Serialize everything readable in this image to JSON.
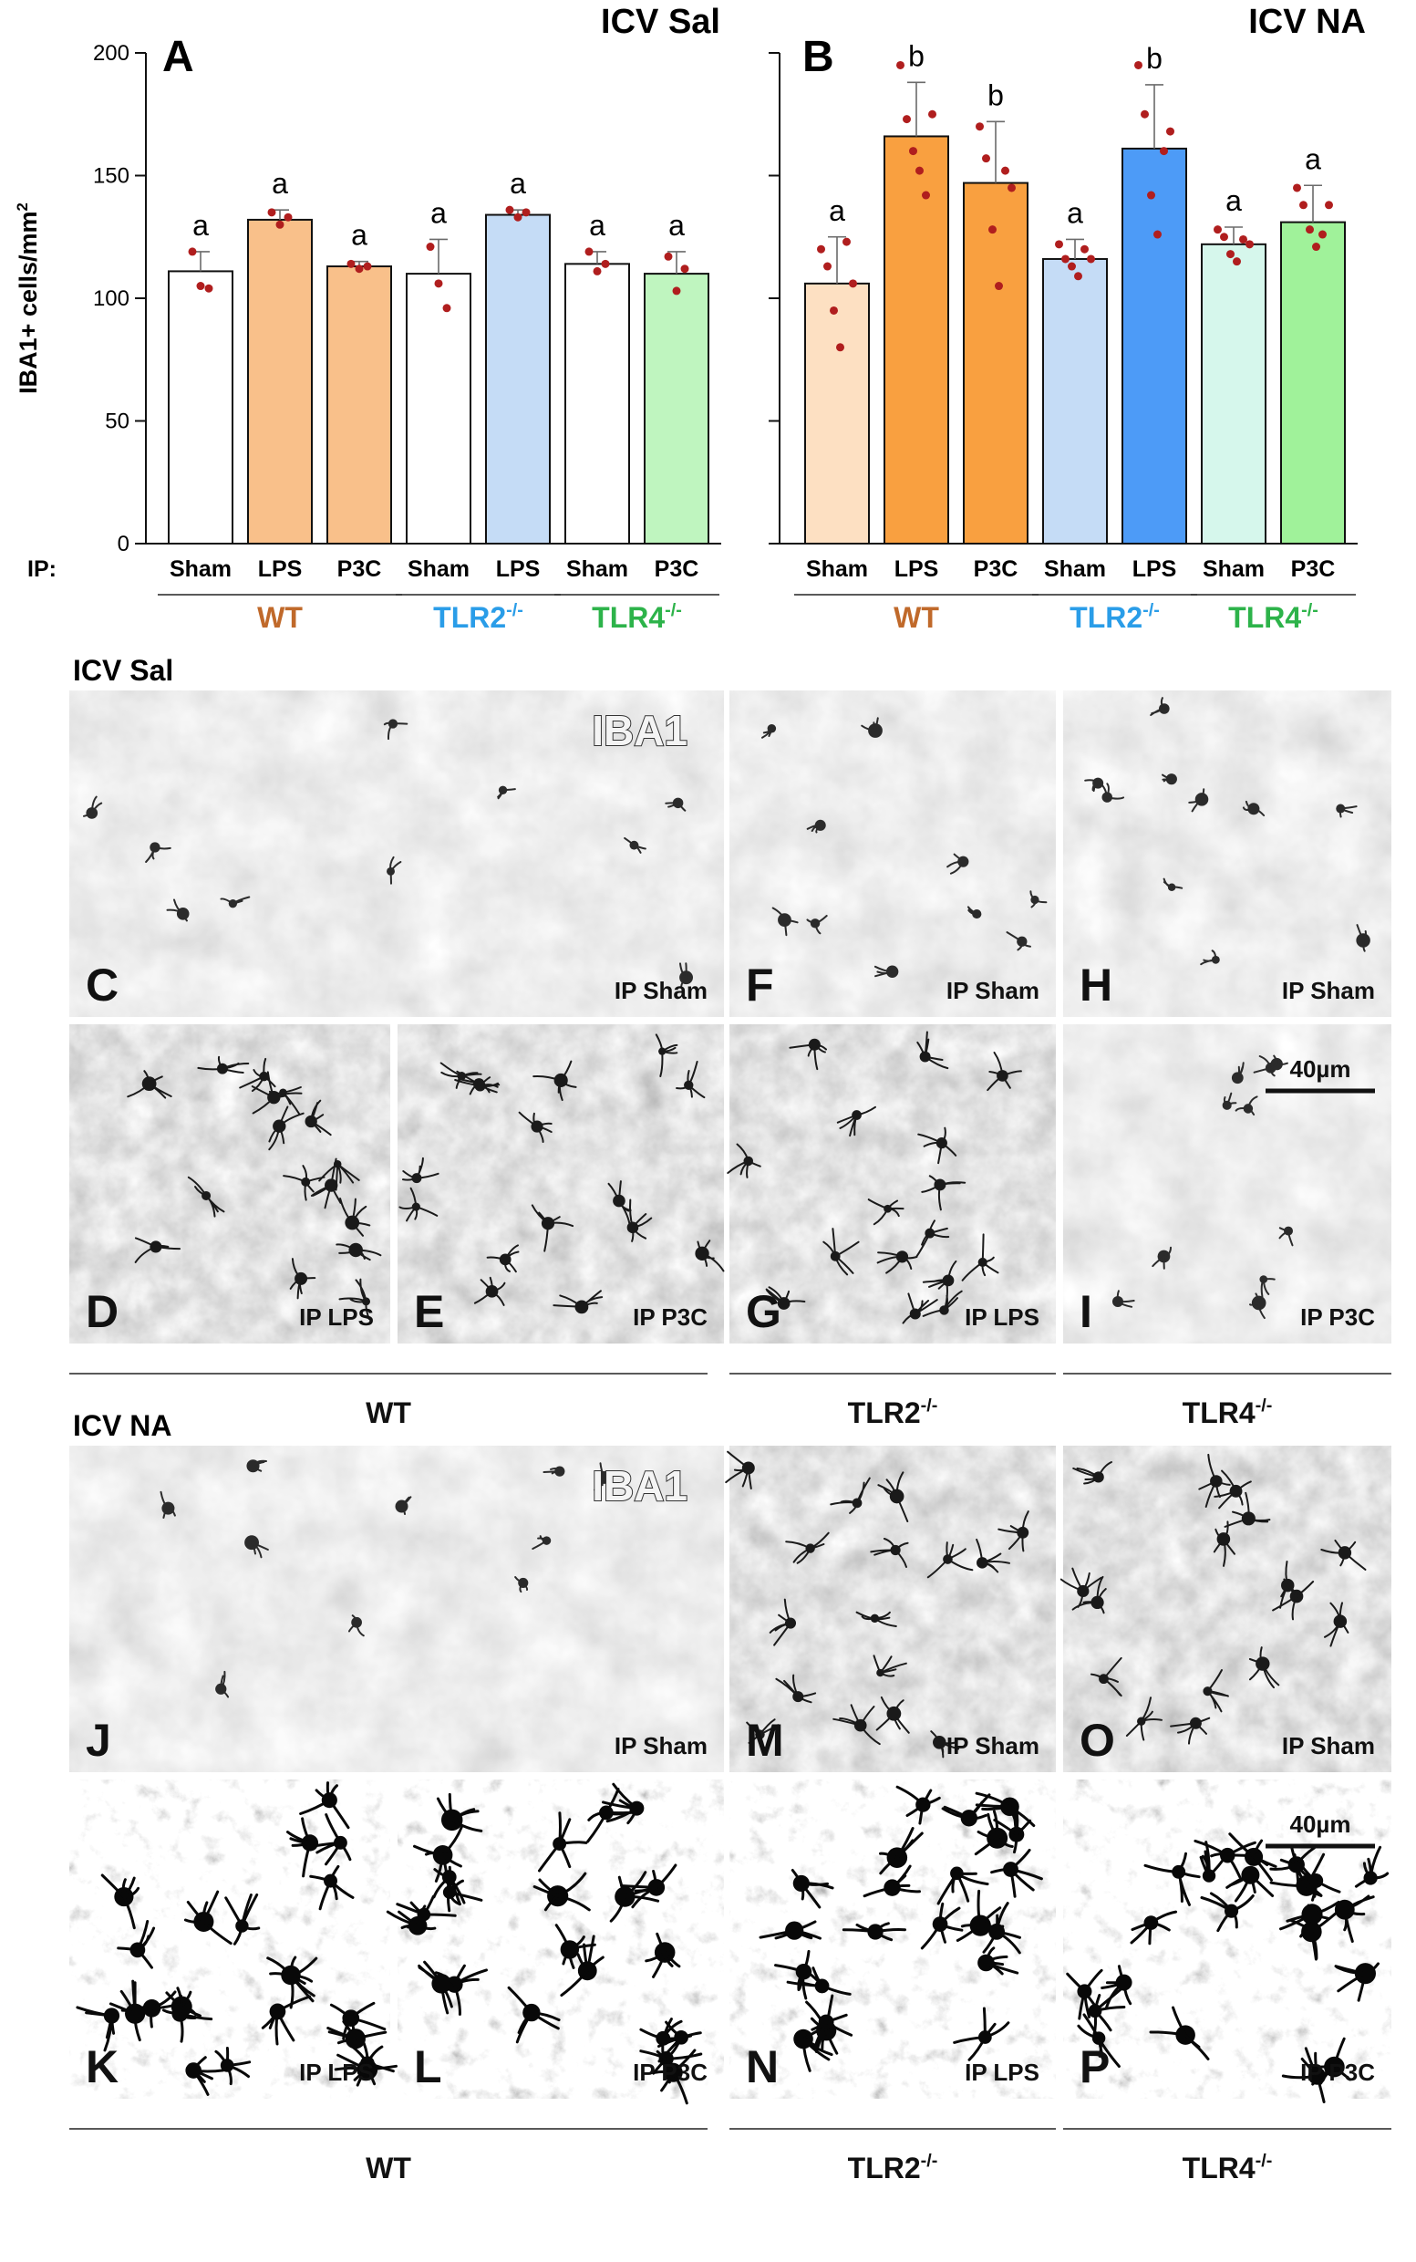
{
  "chart_data": [
    {
      "type": "bar",
      "panel_letter": "A",
      "panel_title": "ICV  Sal",
      "ylabel": "IBA1+ cells/mm2",
      "ylabel_main": "IBA1+ cells/mm",
      "ylabel_sup": "2",
      "ylim": [
        0,
        200
      ],
      "yticks": [
        "0",
        "50",
        "100",
        "150",
        "200"
      ],
      "xaxis_prefix": "IP:",
      "categories": [
        "Sham",
        "LPS",
        "P3C",
        "Sham",
        "LPS",
        "Sham",
        "P3C"
      ],
      "groups": [
        {
          "name": "WT",
          "sup": "",
          "start": 0,
          "end": 2,
          "color": "#c0692a"
        },
        {
          "name": "TLR2",
          "sup": "-/-",
          "start": 3,
          "end": 4,
          "color": "#2a9de8"
        },
        {
          "name": "TLR4",
          "sup": "-/-",
          "start": 5,
          "end": 6,
          "color": "#2db34a"
        }
      ],
      "values": [
        111,
        132,
        113,
        110,
        134,
        114,
        110
      ],
      "errors": [
        8,
        4,
        2,
        14,
        2,
        5,
        9
      ],
      "letters": [
        "a",
        "a",
        "a",
        "a",
        "a",
        "a",
        "a"
      ],
      "bar_colors": [
        "#ffffff",
        "#f9c08a",
        "#f9c08a",
        "#ffffff",
        "#c5dcf6",
        "#ffffff",
        "#bff5bf"
      ],
      "points": [
        [
          119,
          105,
          104
        ],
        [
          135,
          130,
          133
        ],
        [
          114,
          112,
          113
        ],
        [
          121,
          106,
          96
        ],
        [
          136,
          133,
          135
        ],
        [
          119,
          111,
          114
        ],
        [
          117,
          103,
          112
        ]
      ]
    },
    {
      "type": "bar",
      "panel_letter": "B",
      "panel_title": "ICV  NA",
      "ylim": [
        0,
        200
      ],
      "categories": [
        "Sham",
        "LPS",
        "P3C",
        "Sham",
        "LPS",
        "Sham",
        "P3C"
      ],
      "groups": [
        {
          "name": "WT",
          "sup": "",
          "start": 0,
          "end": 2,
          "color": "#c0692a"
        },
        {
          "name": "TLR2",
          "sup": "-/-",
          "start": 3,
          "end": 4,
          "color": "#2a9de8"
        },
        {
          "name": "TLR4",
          "sup": "-/-",
          "start": 5,
          "end": 6,
          "color": "#2db34a"
        }
      ],
      "values": [
        106,
        166,
        147,
        116,
        161,
        122,
        131
      ],
      "errors": [
        19,
        22,
        25,
        8,
        26,
        7,
        15
      ],
      "letters": [
        "a",
        "b",
        "b",
        "a",
        "b",
        "a",
        "a"
      ],
      "bar_colors": [
        "#fde0c2",
        "#f9a040",
        "#f9a040",
        "#c5dcf6",
        "#4d9bf7",
        "#d6f7ec",
        "#a0f29a"
      ],
      "points": [
        [
          120,
          113,
          95,
          80,
          123,
          106
        ],
        [
          195,
          173,
          160,
          152,
          142,
          175
        ],
        [
          170,
          157,
          128,
          105,
          152,
          145
        ],
        [
          122,
          116,
          113,
          109,
          120,
          116
        ],
        [
          195,
          175,
          142,
          126,
          160,
          168
        ],
        [
          128,
          125,
          118,
          115,
          124,
          122
        ],
        [
          145,
          138,
          128,
          121,
          126,
          138
        ]
      ]
    }
  ],
  "sections": [
    {
      "title": "ICV Sal",
      "stain_label": "IBA1",
      "scale_label": "40µm",
      "panels": [
        {
          "letter": "C",
          "label": "IP Sham",
          "tone": "light"
        },
        {
          "letter": "F",
          "label": "IP Sham",
          "tone": "light"
        },
        {
          "letter": "H",
          "label": "IP Sham",
          "tone": "light"
        },
        {
          "letter": "D",
          "label": "IP LPS",
          "tone": "medium"
        },
        {
          "letter": "E",
          "label": "IP P3C",
          "tone": "medium"
        },
        {
          "letter": "G",
          "label": "IP LPS",
          "tone": "medium"
        },
        {
          "letter": "I",
          "label": "IP P3C",
          "tone": "light"
        }
      ],
      "groups": [
        {
          "name": "WT",
          "sup": ""
        },
        {
          "name": "TLR2",
          "sup": "-/-"
        },
        {
          "name": "TLR4",
          "sup": "-/-"
        }
      ]
    },
    {
      "title": "ICV NA",
      "stain_label": "IBA1",
      "scale_label": "40µm",
      "panels": [
        {
          "letter": "J",
          "label": "IP Sham",
          "tone": "light"
        },
        {
          "letter": "M",
          "label": "IP Sham",
          "tone": "medium"
        },
        {
          "letter": "O",
          "label": "IP Sham",
          "tone": "medium"
        },
        {
          "letter": "K",
          "label": "IP LPS",
          "tone": "dark"
        },
        {
          "letter": "L",
          "label": "IP P3C",
          "tone": "dark"
        },
        {
          "letter": "N",
          "label": "IP LPS",
          "tone": "dark"
        },
        {
          "letter": "P",
          "label": "IP P3C",
          "tone": "dark"
        }
      ],
      "groups": [
        {
          "name": "WT",
          "sup": ""
        },
        {
          "name": "TLR2",
          "sup": "-/-"
        },
        {
          "name": "TLR4",
          "sup": "-/-"
        }
      ]
    }
  ]
}
